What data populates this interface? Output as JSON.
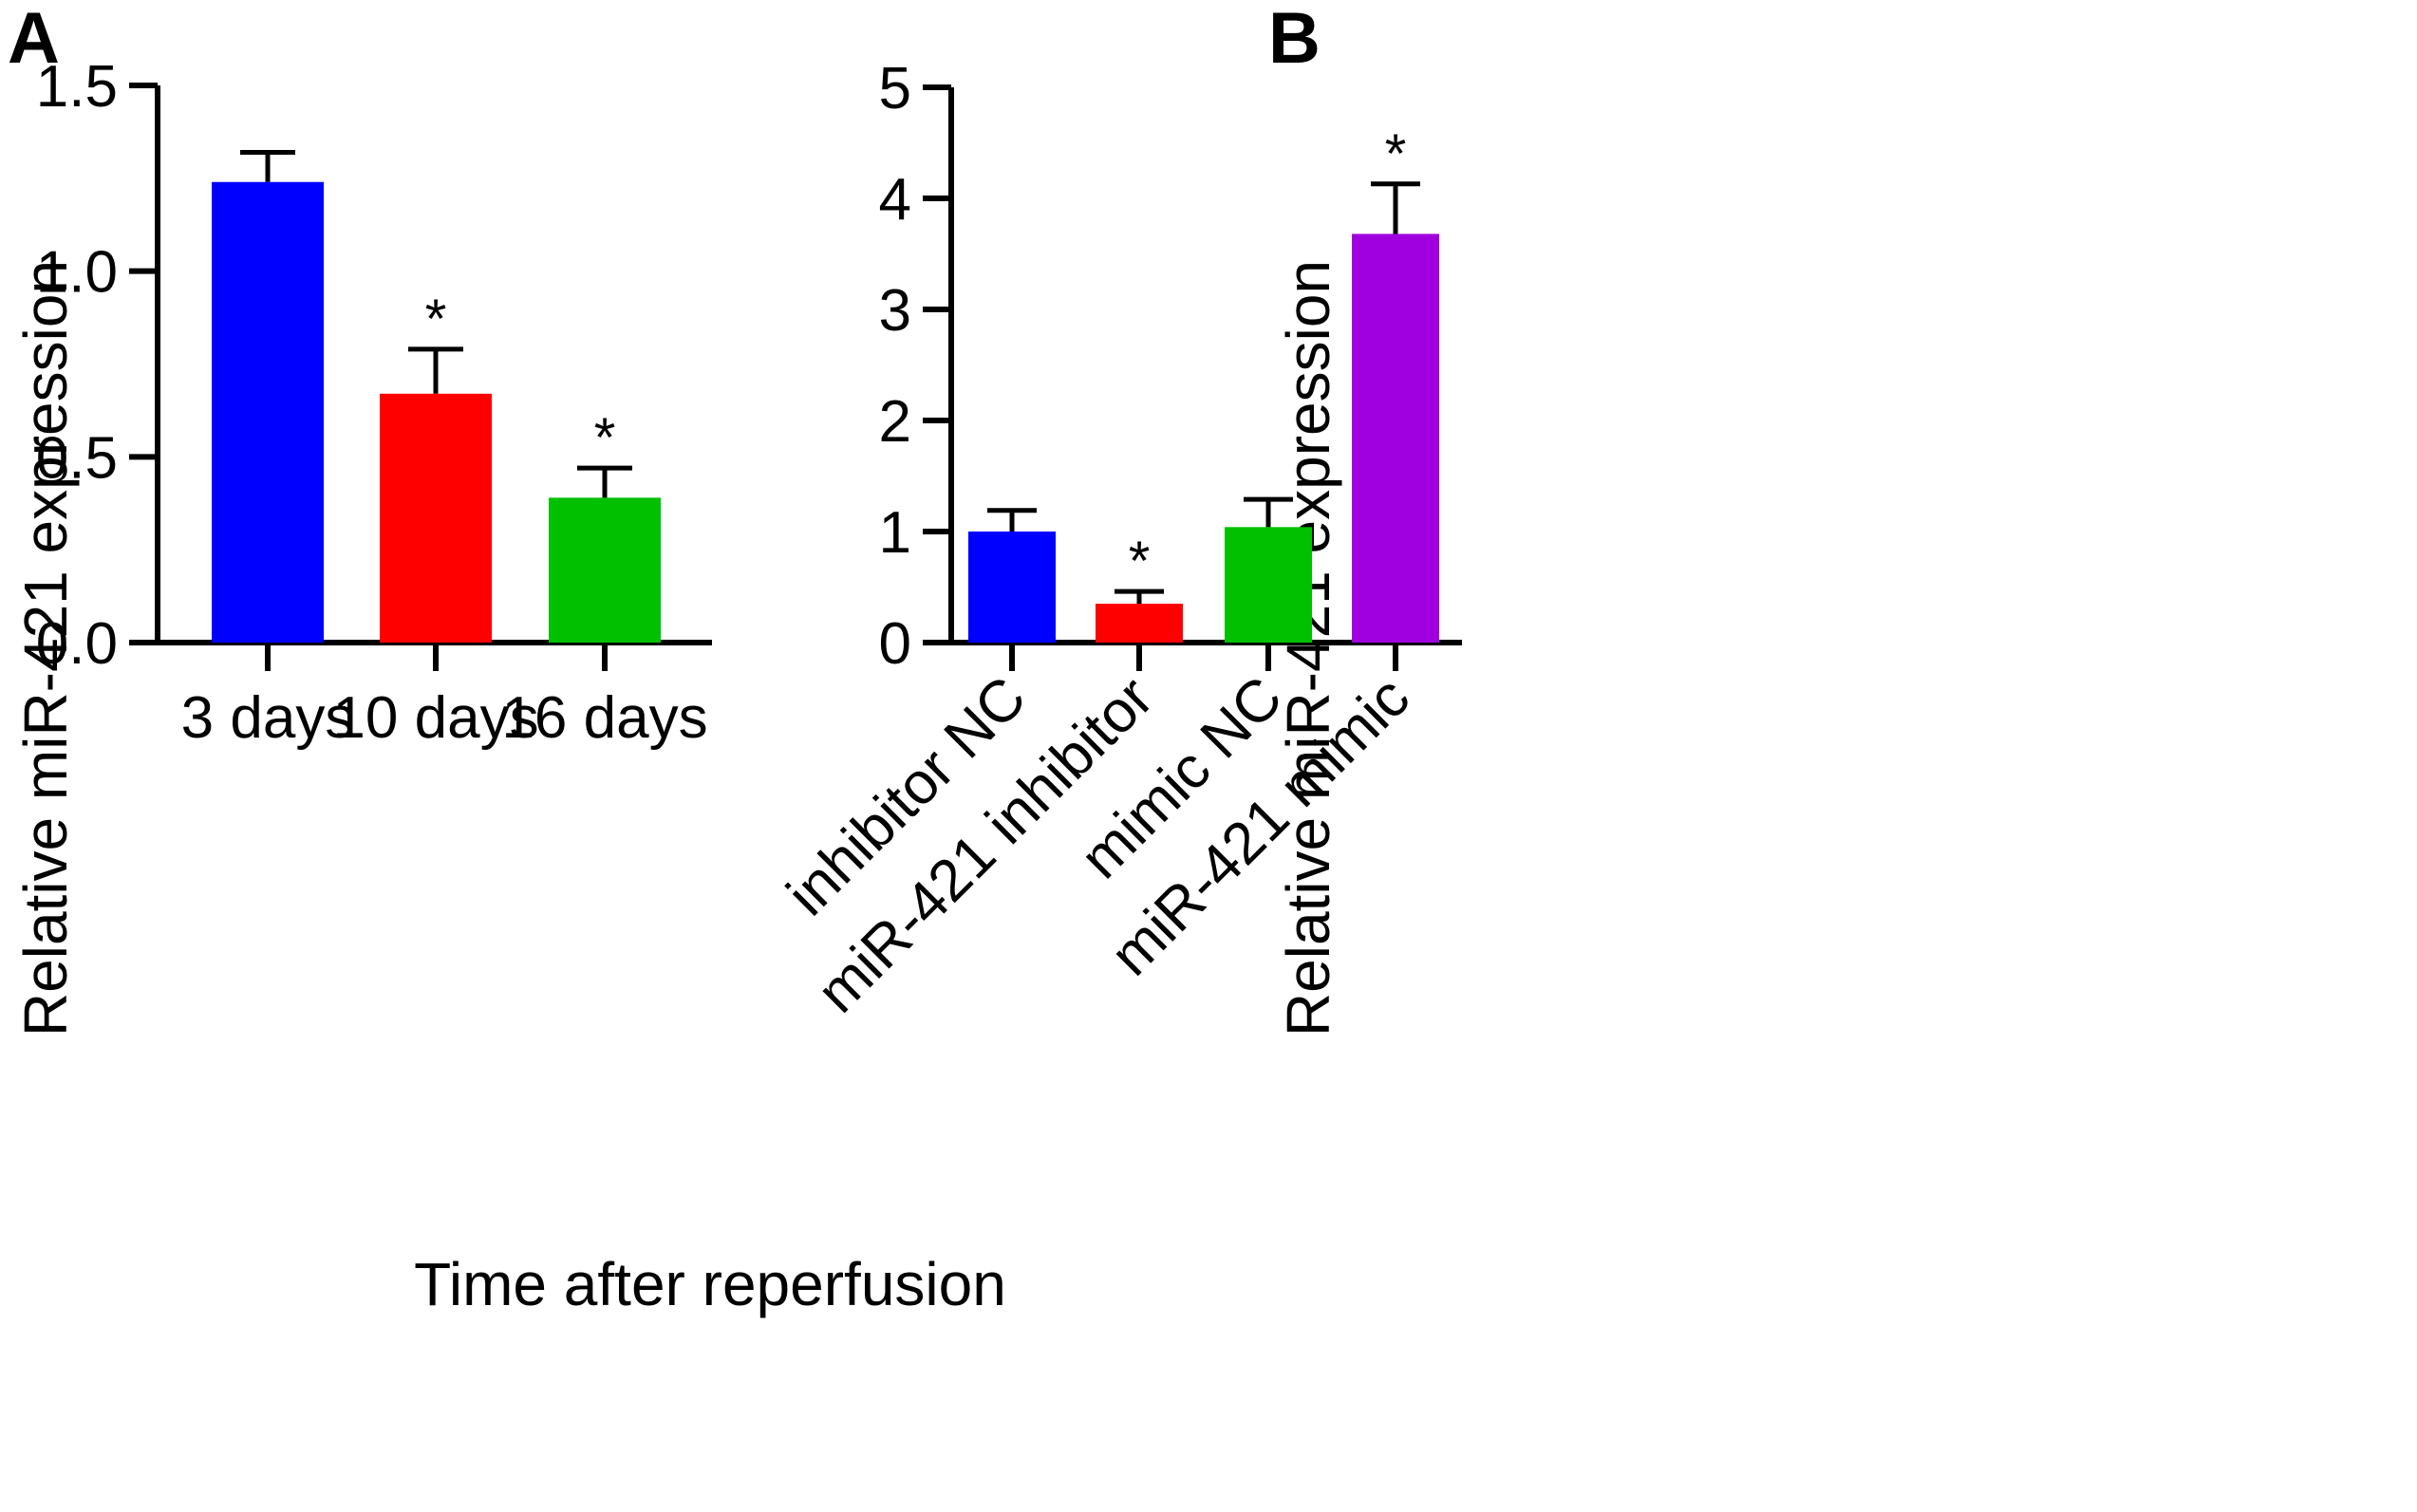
{
  "chart_data": [
    {
      "panel": "A",
      "type": "bar",
      "categories": [
        "3 days",
        "10 days",
        "16 days"
      ],
      "values": [
        1.24,
        0.67,
        0.39
      ],
      "errors": [
        0.08,
        0.12,
        0.08
      ],
      "significance": [
        "",
        "*",
        "*"
      ],
      "colors": [
        "#0000ff",
        "#ff0000",
        "#00c000"
      ],
      "xlabel": "Time after reperfusion",
      "ylabel": "Relative miR-421 expression",
      "ylim": [
        0,
        1.5
      ],
      "yticks": [
        0.0,
        0.5,
        1.0,
        1.5
      ],
      "ytick_labels": [
        "0.0",
        "0.5",
        "1.0",
        "1.5"
      ],
      "grid": false,
      "legend": "none"
    },
    {
      "panel": "B",
      "type": "bar",
      "categories": [
        "inhibitor NC",
        "miR-421 inhibitor",
        "mimic NC",
        "miR-421 mimic"
      ],
      "values": [
        1.0,
        0.35,
        1.04,
        3.68
      ],
      "errors": [
        0.19,
        0.11,
        0.25,
        0.45
      ],
      "significance": [
        "",
        "*",
        "",
        "*"
      ],
      "colors": [
        "#0000ff",
        "#ff0000",
        "#00c000",
        "#a000e0"
      ],
      "xlabel": "",
      "ylabel": "Relative miR-421 expression",
      "ylim": [
        0,
        5
      ],
      "yticks": [
        0,
        1,
        2,
        3,
        4,
        5
      ],
      "ytick_labels": [
        "0",
        "1",
        "2",
        "3",
        "4",
        "5"
      ],
      "grid": false,
      "legend": "none"
    }
  ]
}
